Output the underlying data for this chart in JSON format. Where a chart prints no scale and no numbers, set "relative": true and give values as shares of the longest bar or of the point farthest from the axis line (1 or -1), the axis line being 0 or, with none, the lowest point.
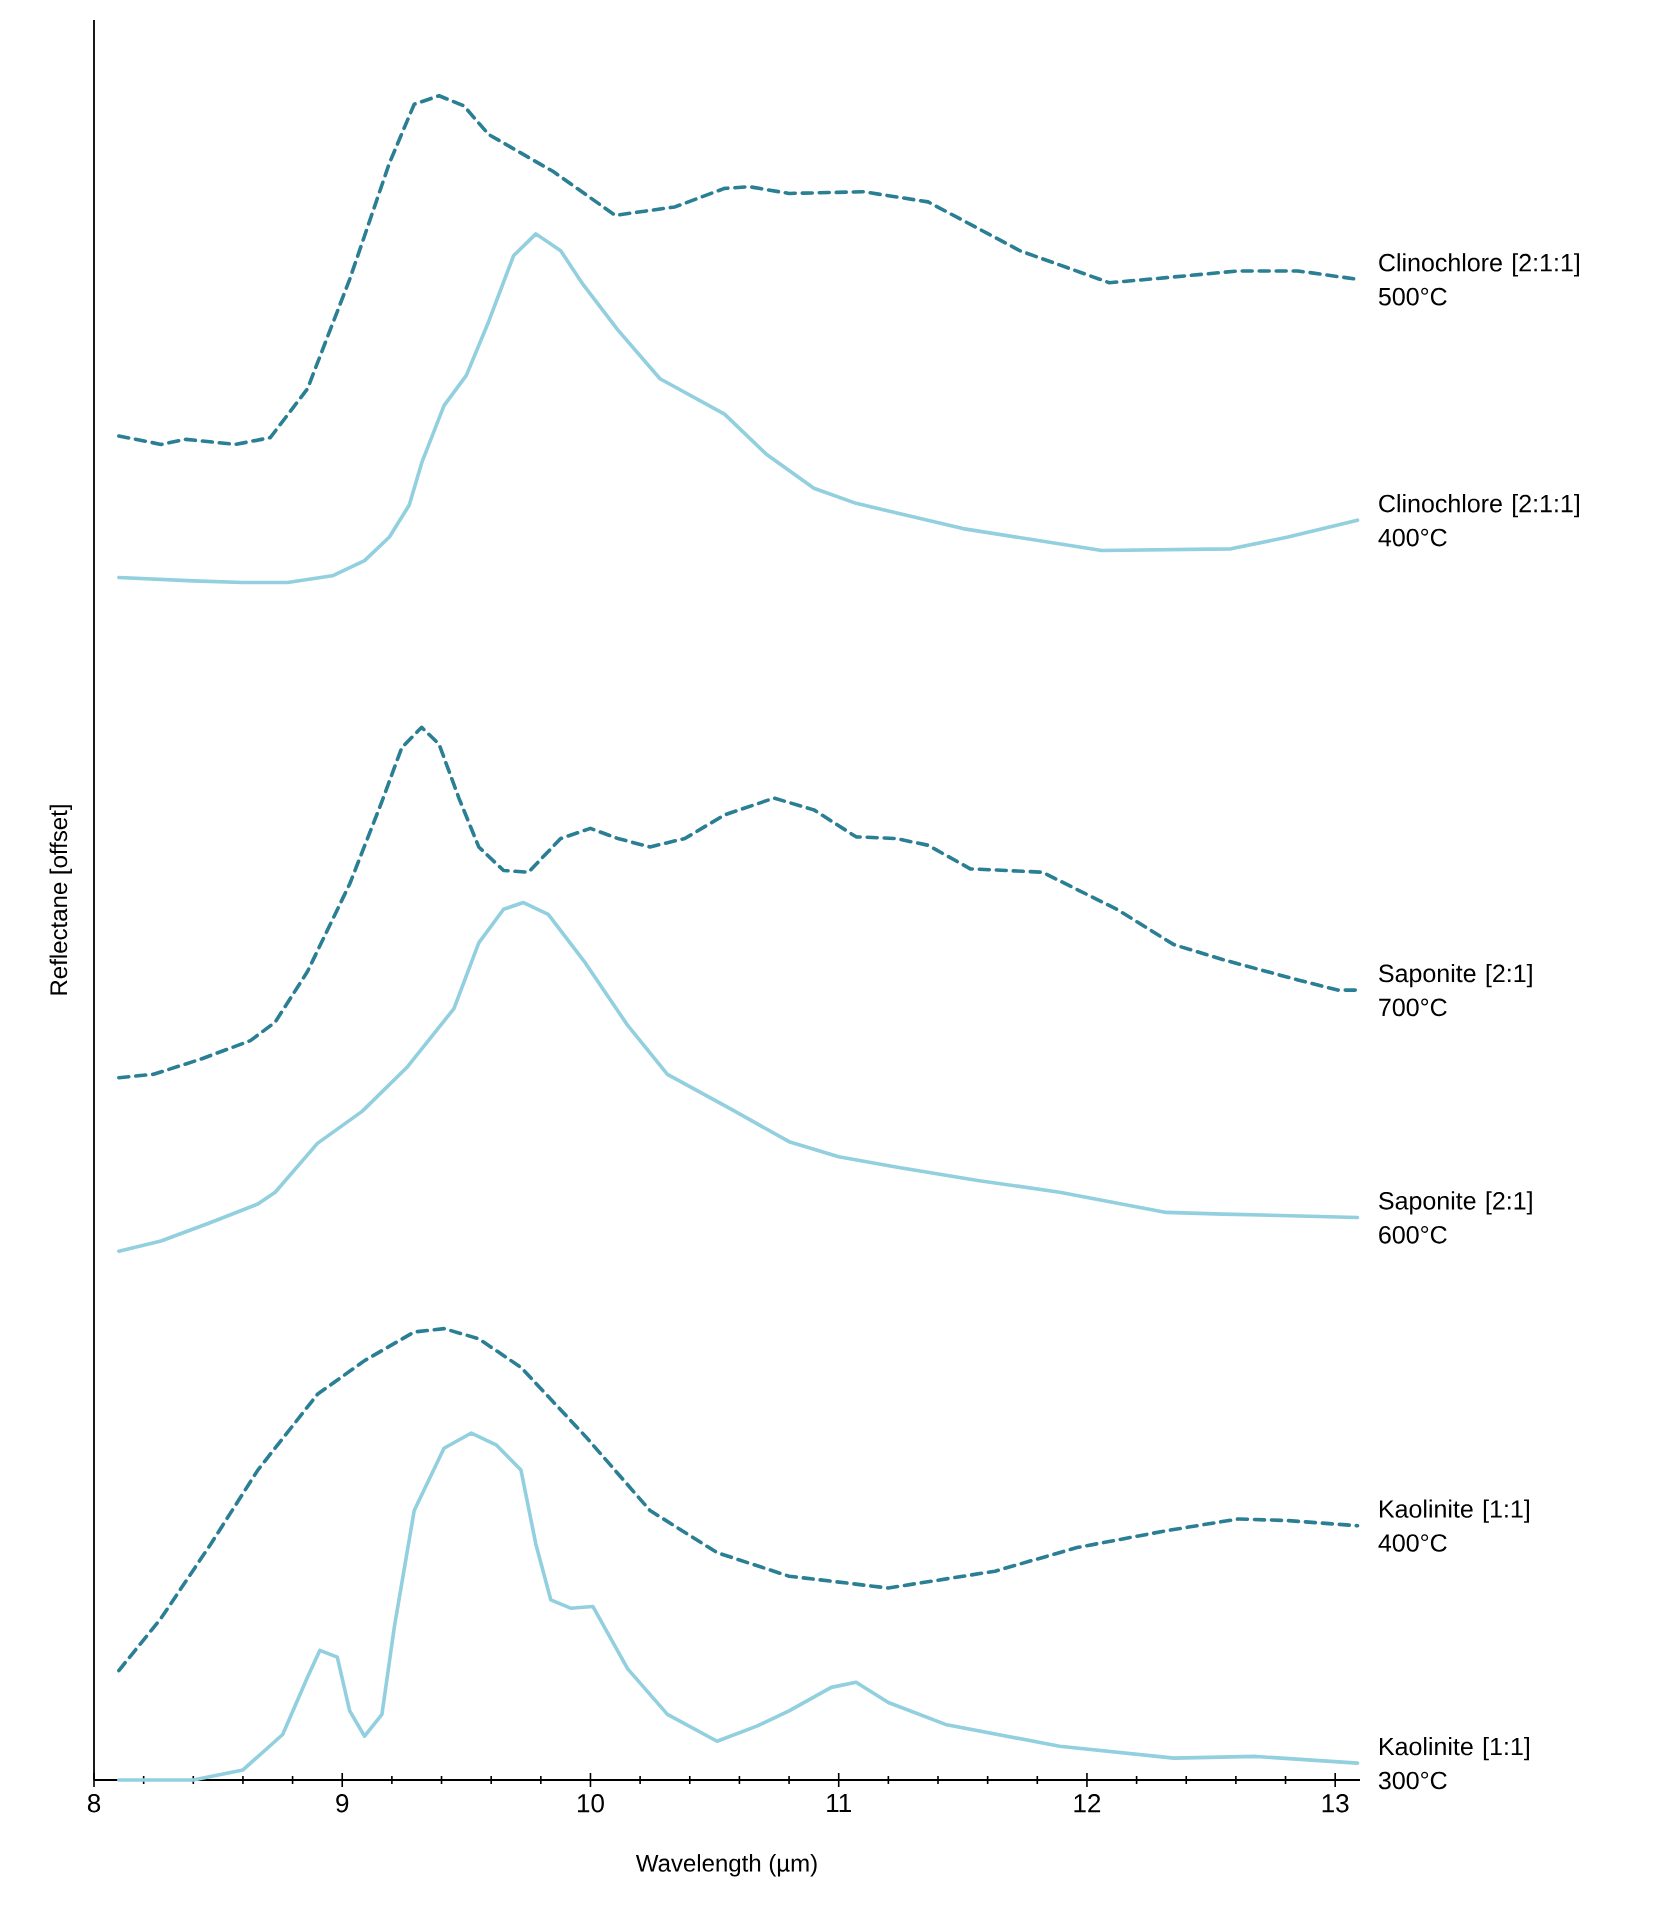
{
  "chart_data": {
    "type": "line",
    "xlabel": "Wavelength (µm)",
    "ylabel": "Reflectane [offset]",
    "relative": true,
    "xlim": [
      8,
      13.1
    ],
    "xticks": [
      8,
      9,
      10,
      11,
      12,
      13
    ],
    "series": [
      {
        "name": "Clinochlore [2:1:1] 500°C",
        "color": "#2a7f94",
        "line_style": "dashed",
        "x": [
          8.1,
          8.27,
          8.37,
          8.57,
          8.71,
          8.86,
          9.03,
          9.19,
          9.29,
          9.39,
          9.49,
          9.59,
          9.85,
          10.1,
          10.34,
          10.54,
          10.64,
          10.8,
          11.1,
          11.36,
          11.73,
          12.09,
          12.32,
          12.61,
          12.85,
          13.09
        ],
        "values": [
          0.798,
          0.793,
          0.796,
          0.793,
          0.797,
          0.826,
          0.891,
          0.96,
          0.995,
          1.0,
          0.994,
          0.977,
          0.955,
          0.929,
          0.934,
          0.945,
          0.946,
          0.942,
          0.943,
          0.937,
          0.908,
          0.889,
          0.892,
          0.896,
          0.896,
          0.891
        ]
      },
      {
        "name": "Clinochlore [2:1:1] 400°C",
        "color": "#92cfdf",
        "line_style": "solid",
        "x": [
          8.1,
          8.4,
          8.6,
          8.78,
          8.96,
          9.09,
          9.19,
          9.27,
          9.32,
          9.41,
          9.5,
          9.59,
          9.69,
          9.78,
          9.88,
          9.97,
          10.11,
          10.28,
          10.54,
          10.71,
          10.9,
          11.07,
          11.5,
          12.06,
          12.58,
          12.81,
          13.09
        ],
        "values": [
          0.714,
          0.712,
          0.711,
          0.711,
          0.715,
          0.724,
          0.738,
          0.757,
          0.782,
          0.816,
          0.834,
          0.866,
          0.905,
          0.918,
          0.908,
          0.888,
          0.861,
          0.832,
          0.811,
          0.787,
          0.767,
          0.758,
          0.743,
          0.73,
          0.731,
          0.738,
          0.748
        ]
      },
      {
        "name": "Saponite [2:1] 700°C",
        "color": "#2a7f94",
        "line_style": "dashed",
        "x": [
          8.1,
          8.24,
          8.43,
          8.63,
          8.73,
          8.86,
          9.03,
          9.16,
          9.24,
          9.32,
          9.39,
          9.47,
          9.55,
          9.65,
          9.75,
          9.88,
          10.0,
          10.11,
          10.24,
          10.38,
          10.54,
          10.74,
          10.9,
          11.07,
          11.23,
          11.36,
          11.53,
          11.82,
          12.12,
          12.35,
          12.55,
          12.85,
          13.01,
          13.09
        ],
        "values": [
          0.417,
          0.419,
          0.428,
          0.439,
          0.45,
          0.48,
          0.532,
          0.581,
          0.613,
          0.625,
          0.615,
          0.583,
          0.554,
          0.54,
          0.539,
          0.559,
          0.565,
          0.559,
          0.554,
          0.559,
          0.573,
          0.583,
          0.576,
          0.56,
          0.559,
          0.555,
          0.541,
          0.539,
          0.517,
          0.496,
          0.487,
          0.475,
          0.469,
          0.469
        ]
      },
      {
        "name": "Saponite [2:1] 600°C",
        "color": "#92cfdf",
        "line_style": "solid",
        "x": [
          8.1,
          8.27,
          8.47,
          8.66,
          8.73,
          8.9,
          9.08,
          9.26,
          9.45,
          9.55,
          9.65,
          9.73,
          9.83,
          9.98,
          10.15,
          10.31,
          10.57,
          10.8,
          11.0,
          11.23,
          11.56,
          11.89,
          12.32,
          12.55,
          13.09
        ],
        "values": [
          0.314,
          0.32,
          0.331,
          0.342,
          0.349,
          0.378,
          0.397,
          0.423,
          0.458,
          0.497,
          0.517,
          0.521,
          0.514,
          0.485,
          0.448,
          0.419,
          0.398,
          0.379,
          0.37,
          0.364,
          0.356,
          0.349,
          0.337,
          0.336,
          0.334
        ]
      },
      {
        "name": "Kaolinite [1:1] 400°C",
        "color": "#2a7f94",
        "line_style": "dashed",
        "x": [
          8.1,
          8.27,
          8.47,
          8.66,
          8.9,
          9.09,
          9.29,
          9.41,
          9.55,
          9.72,
          9.98,
          10.24,
          10.51,
          10.8,
          11.2,
          11.63,
          11.96,
          12.32,
          12.61,
          12.81,
          13.09
        ],
        "values": [
          0.065,
          0.096,
          0.14,
          0.184,
          0.229,
          0.249,
          0.266,
          0.268,
          0.262,
          0.245,
          0.204,
          0.16,
          0.135,
          0.121,
          0.114,
          0.124,
          0.138,
          0.148,
          0.155,
          0.154,
          0.151
        ]
      },
      {
        "name": "Kaolinite [1:1] 300°C",
        "color": "#92cfdf",
        "line_style": "solid",
        "x": [
          8.1,
          8.4,
          8.6,
          8.76,
          8.86,
          8.91,
          8.98,
          9.03,
          9.09,
          9.16,
          9.21,
          9.29,
          9.41,
          9.52,
          9.62,
          9.72,
          9.78,
          9.84,
          9.92,
          10.01,
          10.15,
          10.31,
          10.51,
          10.67,
          10.8,
          10.97,
          11.07,
          11.2,
          11.43,
          11.89,
          12.35,
          12.68,
          13.09
        ],
        "values": [
          0,
          0,
          0.006,
          0.027,
          0.061,
          0.077,
          0.073,
          0.041,
          0.026,
          0.039,
          0.091,
          0.16,
          0.197,
          0.206,
          0.199,
          0.184,
          0.14,
          0.107,
          0.102,
          0.103,
          0.066,
          0.039,
          0.023,
          0.032,
          0.041,
          0.055,
          0.058,
          0.046,
          0.033,
          0.02,
          0.013,
          0.014,
          0.01
        ]
      }
    ]
  }
}
